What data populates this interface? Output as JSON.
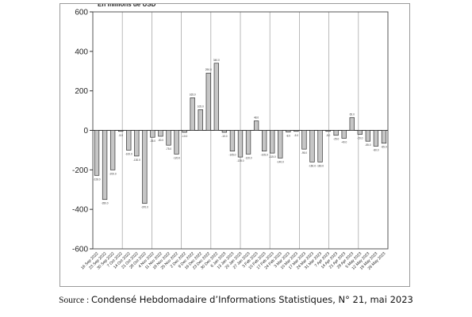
{
  "chart_data": {
    "type": "bar",
    "title": "En millions de USD",
    "ylim": [
      -600,
      600
    ],
    "yticks": [
      -600,
      -400,
      -200,
      0,
      200,
      400,
      600
    ],
    "grid": "vertical",
    "categories": [
      "16 Sep 2022",
      "23 Sep 2022",
      "30 Sep 2022",
      "7 Oct 2022",
      "14 Oct 2022",
      "21 Oct 2022",
      "28 Oct 2022",
      "4 Nov 2022",
      "11 Nov 2022",
      "18 Nov 2022",
      "25 Nov 2022",
      "2 Dec 2022",
      "9 Dec 2022",
      "16 Dec 2022",
      "23 Dec 2022",
      "30 Dec 2022",
      "6 Jan 2023",
      "13 Jan 2023",
      "20 Jan 2023",
      "27 Jan 2023",
      "3 Feb 2023",
      "10 Feb 2023",
      "17 Feb 2023",
      "24 Feb 2023",
      "3 Mar 2023",
      "10 Mar 2023",
      "17 Mar 2023",
      "24 Mar 2023",
      "31 Mar 2023",
      "7 Apr 2023",
      "14 Apr 2023",
      "21 Apr 2023",
      "28 Apr 2023",
      "5 May 2023",
      "12 May 2023",
      "19 May 2023",
      "26 May 2023"
    ],
    "values": [
      -228,
      -350,
      -200,
      -5,
      -100,
      -130,
      -370,
      -35,
      -30,
      -75,
      -120,
      -10,
      165,
      105,
      290,
      340,
      -10,
      -105,
      -135,
      -120,
      48,
      -105,
      -115,
      -140,
      -8,
      -5,
      -95,
      -160,
      -160,
      -5,
      -25,
      -40,
      65,
      -20,
      -55,
      -80,
      -65
    ],
    "bar_color": "#c6c6c6"
  },
  "source": {
    "prefix": "Source : ",
    "text": "Condensé Hebdomadaire d’Informations Statistiques, N° 21, mai 2023"
  }
}
